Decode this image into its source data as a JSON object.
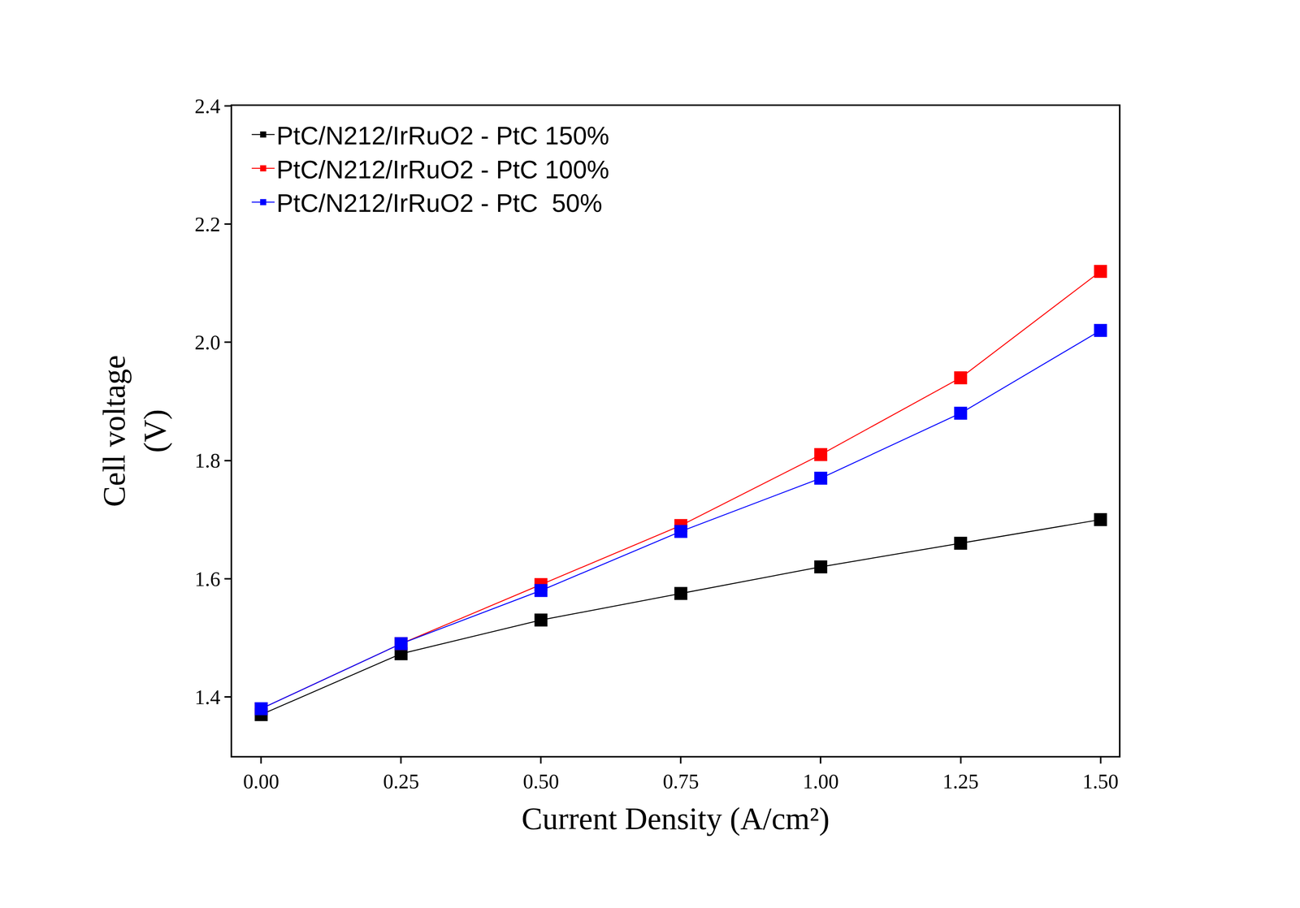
{
  "chart_data": {
    "type": "line",
    "x_label": "Current Density (A/cm²)",
    "y_label": "Cell voltage\n(V)",
    "x": [
      0,
      0.25,
      0.5,
      0.75,
      1.0,
      1.25,
      1.5
    ],
    "series": [
      {
        "name": "PtC/N212/IrRuO2 - PtC 150%",
        "color": "#000000",
        "marker": "square",
        "values": [
          1.37,
          1.473,
          1.53,
          1.575,
          1.62,
          1.66,
          1.7
        ]
      },
      {
        "name": "PtC/N212/IrRuO2 - PtC 100%",
        "color": "#ff0000",
        "marker": "square",
        "values": [
          1.38,
          1.49,
          1.59,
          1.69,
          1.81,
          1.94,
          2.12
        ]
      },
      {
        "name": "PtC/N212/IrRuO2 - PtC  50%",
        "color": "#0000ff",
        "marker": "square",
        "values": [
          1.38,
          1.49,
          1.58,
          1.68,
          1.77,
          1.88,
          2.02
        ]
      }
    ],
    "xlim": [
      -0.052,
      1.533
    ],
    "xticks": [
      {
        "value": 0,
        "label": "0.00"
      },
      {
        "value": 0.25,
        "label": "0.25"
      },
      {
        "value": 0.5,
        "label": "0.50"
      },
      {
        "value": 0.75,
        "label": "0.75"
      },
      {
        "value": 1,
        "label": "1.00"
      },
      {
        "value": 1.25,
        "label": "1.25"
      },
      {
        "value": 1.5,
        "label": "1.50"
      }
    ],
    "ylim": [
      1.3,
      2.4
    ],
    "yticks": [
      1.4,
      1.6,
      1.8,
      {
        "value": 2,
        "label": "2.0"
      },
      2.2,
      2.4
    ],
    "grid": false,
    "legend": "upper left"
  }
}
